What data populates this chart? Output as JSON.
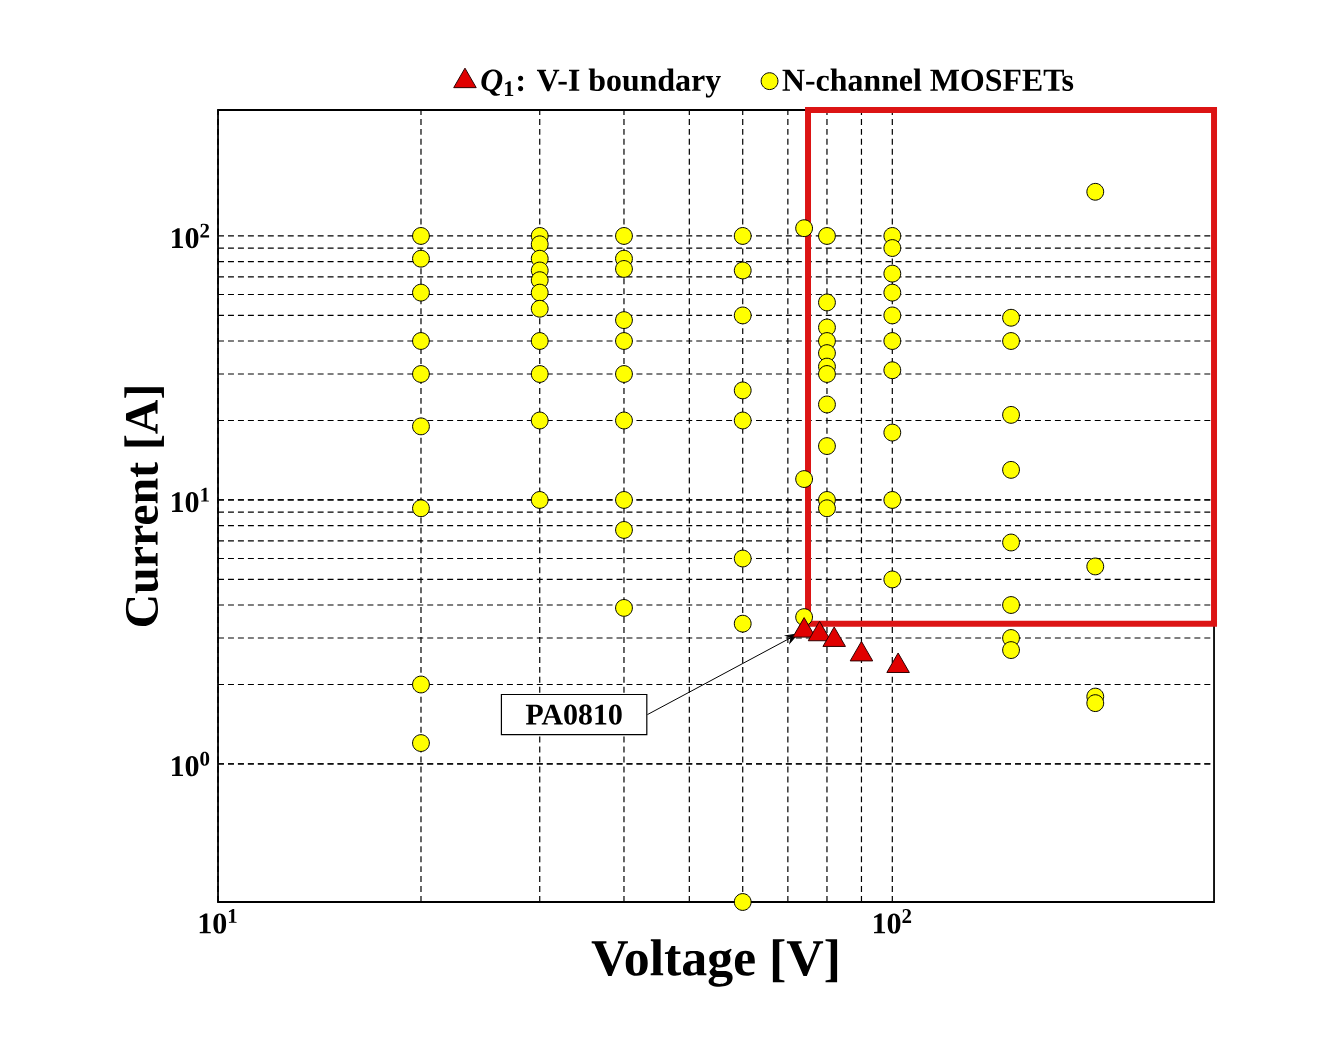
{
  "chart_data": {
    "type": "scatter",
    "xlabel": "Voltage [V]",
    "ylabel": "Current [A]",
    "log": "xy",
    "grid": true,
    "legend": "top",
    "xlim": [
      10,
      300
    ],
    "ylim": [
      0.3,
      300
    ],
    "xticks": [
      {
        "value": 10,
        "label": "10$^{1}$"
      },
      {
        "value": 100,
        "label": "10$^{2}$"
      }
    ],
    "yticks": [
      {
        "value": 1,
        "label": "10$^{0}$"
      },
      {
        "value": 10,
        "label": "10$^{1}$"
      },
      {
        "value": 100,
        "label": "10$^{2}$"
      }
    ],
    "series": [
      {
        "name": "*Q*$_{1}$: V-I boundary",
        "color": "#e00000",
        "marker": "triangle",
        "x": [
          74,
          78,
          82,
          90,
          102
        ],
        "values": [
          3.2,
          3.1,
          2.95,
          2.6,
          2.35
        ]
      },
      {
        "name": "N-channel MOSFETs",
        "color": "#ffff00",
        "marker": "circle",
        "x": [
          20,
          20,
          20,
          20,
          20,
          20,
          20,
          20,
          20,
          30,
          30,
          30,
          30,
          30,
          30,
          30,
          30,
          30,
          30,
          30,
          40,
          40,
          40,
          40,
          40,
          40,
          40,
          40,
          40,
          40,
          60,
          60,
          60,
          60,
          60,
          60,
          60,
          60,
          74,
          74,
          74,
          80,
          80,
          80,
          80,
          80,
          80,
          80,
          80,
          80,
          80,
          80,
          100,
          100,
          100,
          100,
          100,
          100,
          100,
          100,
          100,
          100,
          150,
          150,
          150,
          150,
          150,
          150,
          150,
          150,
          200,
          200,
          200,
          200
        ],
        "values": [
          100,
          82,
          61,
          40,
          30,
          19,
          9.3,
          2,
          1.2,
          100,
          93,
          82,
          74,
          68,
          61,
          53,
          40,
          30,
          20,
          10,
          100,
          82,
          75,
          48,
          40,
          30,
          20,
          10,
          7.7,
          3.9,
          100,
          74,
          50,
          26,
          20,
          6,
          3.4,
          0.3,
          107,
          12,
          3.6,
          100,
          56,
          45,
          40,
          36,
          32,
          30,
          23,
          16,
          10,
          9.3,
          100,
          90,
          72,
          61,
          50,
          40,
          31,
          18,
          10,
          5,
          49,
          40,
          21,
          13,
          6.9,
          4,
          3,
          2.7,
          147,
          5.6,
          1.8,
          1.7
        ]
      }
    ],
    "annotations": [
      {
        "text": "PA0810",
        "x": 74,
        "y": 3.2
      }
    ]
  }
}
